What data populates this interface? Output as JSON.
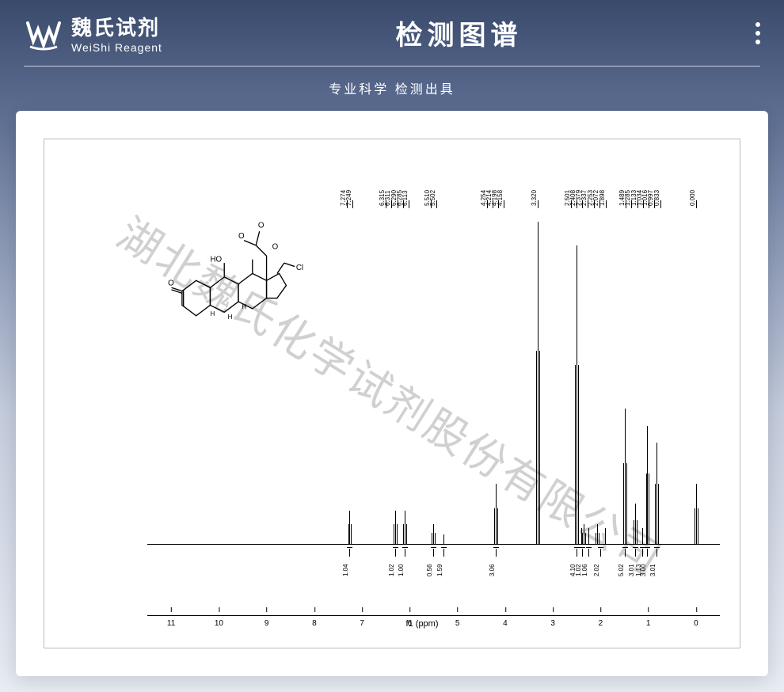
{
  "header": {
    "logo_cn": "魏氏试剂",
    "logo_en": "WeiShi Reagent",
    "title": "检测图谱",
    "subtitle": "专业科学  检测出具"
  },
  "watermark": "湖北魏氏化学试剂股份有限公司",
  "spectrum": {
    "type": "nmr-1h",
    "x_label": "f1 (ppm)",
    "x_range": [
      11.5,
      -0.5
    ],
    "x_ticks": [
      11,
      10,
      9,
      8,
      7,
      6,
      5,
      4,
      3,
      2,
      1,
      0
    ],
    "baseline_color": "#000000",
    "background_color": "#ffffff",
    "peak_labels": [
      {
        "ppm": 7.274,
        "text": "7.274"
      },
      {
        "ppm": 7.249,
        "text": "7.249"
      },
      {
        "ppm": 6.315,
        "text": "6.315"
      },
      {
        "ppm": 6.311,
        "text": "6.311"
      },
      {
        "ppm": 6.29,
        "text": "6.290"
      },
      {
        "ppm": 6.285,
        "text": "6.285"
      },
      {
        "ppm": 6.113,
        "text": "6.113"
      },
      {
        "ppm": 5.51,
        "text": "5.510"
      },
      {
        "ppm": 5.502,
        "text": "5.502"
      },
      {
        "ppm": 4.254,
        "text": "4.254"
      },
      {
        "ppm": 4.214,
        "text": "4.214"
      },
      {
        "ppm": 4.198,
        "text": "4.198"
      },
      {
        "ppm": 4.158,
        "text": "4.158"
      },
      {
        "ppm": 3.32,
        "text": "3.320"
      },
      {
        "ppm": 2.501,
        "text": "2.501"
      },
      {
        "ppm": 2.408,
        "text": "2.408"
      },
      {
        "ppm": 2.379,
        "text": "2.379"
      },
      {
        "ppm": 2.337,
        "text": "2.337"
      },
      {
        "ppm": 2.253,
        "text": "2.253"
      },
      {
        "ppm": 2.072,
        "text": "2.072"
      },
      {
        "ppm": 1.898,
        "text": "1.898"
      },
      {
        "ppm": 1.489,
        "text": "1.489"
      },
      {
        "ppm": 1.285,
        "text": "1.285"
      },
      {
        "ppm": 1.133,
        "text": "1.133"
      },
      {
        "ppm": 1.034,
        "text": "1.034"
      },
      {
        "ppm": 1.016,
        "text": "1.016"
      },
      {
        "ppm": 0.997,
        "text": "0.997"
      },
      {
        "ppm": 0.833,
        "text": "0.833"
      },
      {
        "ppm": 0.0,
        "text": "0.000"
      }
    ],
    "peaks": [
      {
        "ppm": 7.26,
        "height": 0.1
      },
      {
        "ppm": 6.3,
        "height": 0.1
      },
      {
        "ppm": 6.11,
        "height": 0.1
      },
      {
        "ppm": 5.51,
        "height": 0.06
      },
      {
        "ppm": 5.3,
        "height": 0.03
      },
      {
        "ppm": 4.2,
        "height": 0.18
      },
      {
        "ppm": 3.32,
        "height": 0.95
      },
      {
        "ppm": 2.5,
        "height": 0.88
      },
      {
        "ppm": 2.4,
        "height": 0.05
      },
      {
        "ppm": 2.35,
        "height": 0.06
      },
      {
        "ppm": 2.25,
        "height": 0.05
      },
      {
        "ppm": 2.07,
        "height": 0.06
      },
      {
        "ppm": 1.9,
        "height": 0.05
      },
      {
        "ppm": 1.49,
        "height": 0.4
      },
      {
        "ppm": 1.28,
        "height": 0.12
      },
      {
        "ppm": 1.13,
        "height": 0.05
      },
      {
        "ppm": 1.02,
        "height": 0.35
      },
      {
        "ppm": 0.83,
        "height": 0.3
      },
      {
        "ppm": 0.0,
        "height": 0.18
      }
    ],
    "integrals": [
      {
        "ppm": 7.26,
        "text": "1.04"
      },
      {
        "ppm": 6.3,
        "text": "1.02"
      },
      {
        "ppm": 6.11,
        "text": "1.00"
      },
      {
        "ppm": 5.51,
        "text": "0.56"
      },
      {
        "ppm": 5.3,
        "text": "1.59"
      },
      {
        "ppm": 4.2,
        "text": "3.06"
      },
      {
        "ppm": 2.5,
        "text": "4.10"
      },
      {
        "ppm": 2.38,
        "text": "1.02"
      },
      {
        "ppm": 2.25,
        "text": "1.06"
      },
      {
        "ppm": 2.0,
        "text": "2.02"
      },
      {
        "ppm": 1.49,
        "text": "5.02"
      },
      {
        "ppm": 1.28,
        "text": "3.01"
      },
      {
        "ppm": 1.13,
        "text": "1.13"
      },
      {
        "ppm": 1.02,
        "text": "3.00"
      },
      {
        "ppm": 0.83,
        "text": "3.01"
      }
    ]
  },
  "structure": {
    "labels": [
      "HO",
      "O",
      "O",
      "O",
      "O",
      "Cl",
      "H",
      "H",
      "H"
    ]
  }
}
